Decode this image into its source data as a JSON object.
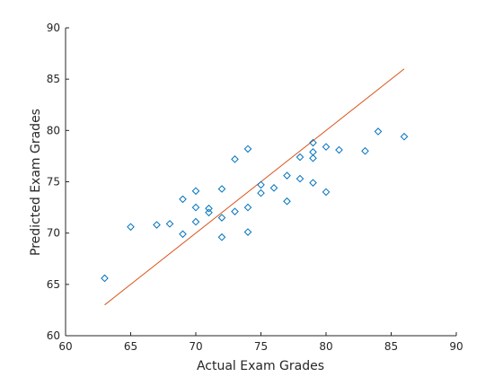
{
  "chart_data": {
    "type": "scatter",
    "title": "",
    "xlabel": "Actual Exam Grades",
    "ylabel": "Predicted Exam Grades",
    "xlim": [
      60,
      90
    ],
    "ylim": [
      60,
      90
    ],
    "xticks": [
      60,
      65,
      70,
      75,
      80,
      85,
      90
    ],
    "yticks": [
      60,
      65,
      70,
      75,
      80,
      85,
      90
    ],
    "grid": false,
    "legend": "none",
    "marker": "diamond",
    "marker_color": "#0072BD",
    "line_color": "#D95319",
    "points": [
      {
        "x": 63,
        "y": 65.6
      },
      {
        "x": 65,
        "y": 70.6
      },
      {
        "x": 67,
        "y": 70.8
      },
      {
        "x": 68,
        "y": 70.9
      },
      {
        "x": 69,
        "y": 73.3
      },
      {
        "x": 69,
        "y": 69.9
      },
      {
        "x": 70,
        "y": 74.1
      },
      {
        "x": 70,
        "y": 72.5
      },
      {
        "x": 70,
        "y": 71.1
      },
      {
        "x": 71,
        "y": 72.4
      },
      {
        "x": 71,
        "y": 72.0
      },
      {
        "x": 72,
        "y": 74.3
      },
      {
        "x": 72,
        "y": 71.5
      },
      {
        "x": 72,
        "y": 69.6
      },
      {
        "x": 73,
        "y": 77.2
      },
      {
        "x": 73,
        "y": 72.1
      },
      {
        "x": 74,
        "y": 78.2
      },
      {
        "x": 74,
        "y": 72.5
      },
      {
        "x": 74,
        "y": 70.1
      },
      {
        "x": 75,
        "y": 74.7
      },
      {
        "x": 75,
        "y": 73.9
      },
      {
        "x": 76,
        "y": 74.4
      },
      {
        "x": 77,
        "y": 75.6
      },
      {
        "x": 77,
        "y": 73.1
      },
      {
        "x": 78,
        "y": 77.4
      },
      {
        "x": 78,
        "y": 75.3
      },
      {
        "x": 79,
        "y": 78.8
      },
      {
        "x": 79,
        "y": 77.9
      },
      {
        "x": 79,
        "y": 77.3
      },
      {
        "x": 79,
        "y": 74.9
      },
      {
        "x": 80,
        "y": 78.4
      },
      {
        "x": 80,
        "y": 74.0
      },
      {
        "x": 81,
        "y": 78.1
      },
      {
        "x": 83,
        "y": 78.0
      },
      {
        "x": 84,
        "y": 79.9
      },
      {
        "x": 86,
        "y": 79.4
      }
    ],
    "reference_line": {
      "x": [
        63,
        86
      ],
      "y": [
        63,
        86
      ]
    }
  }
}
